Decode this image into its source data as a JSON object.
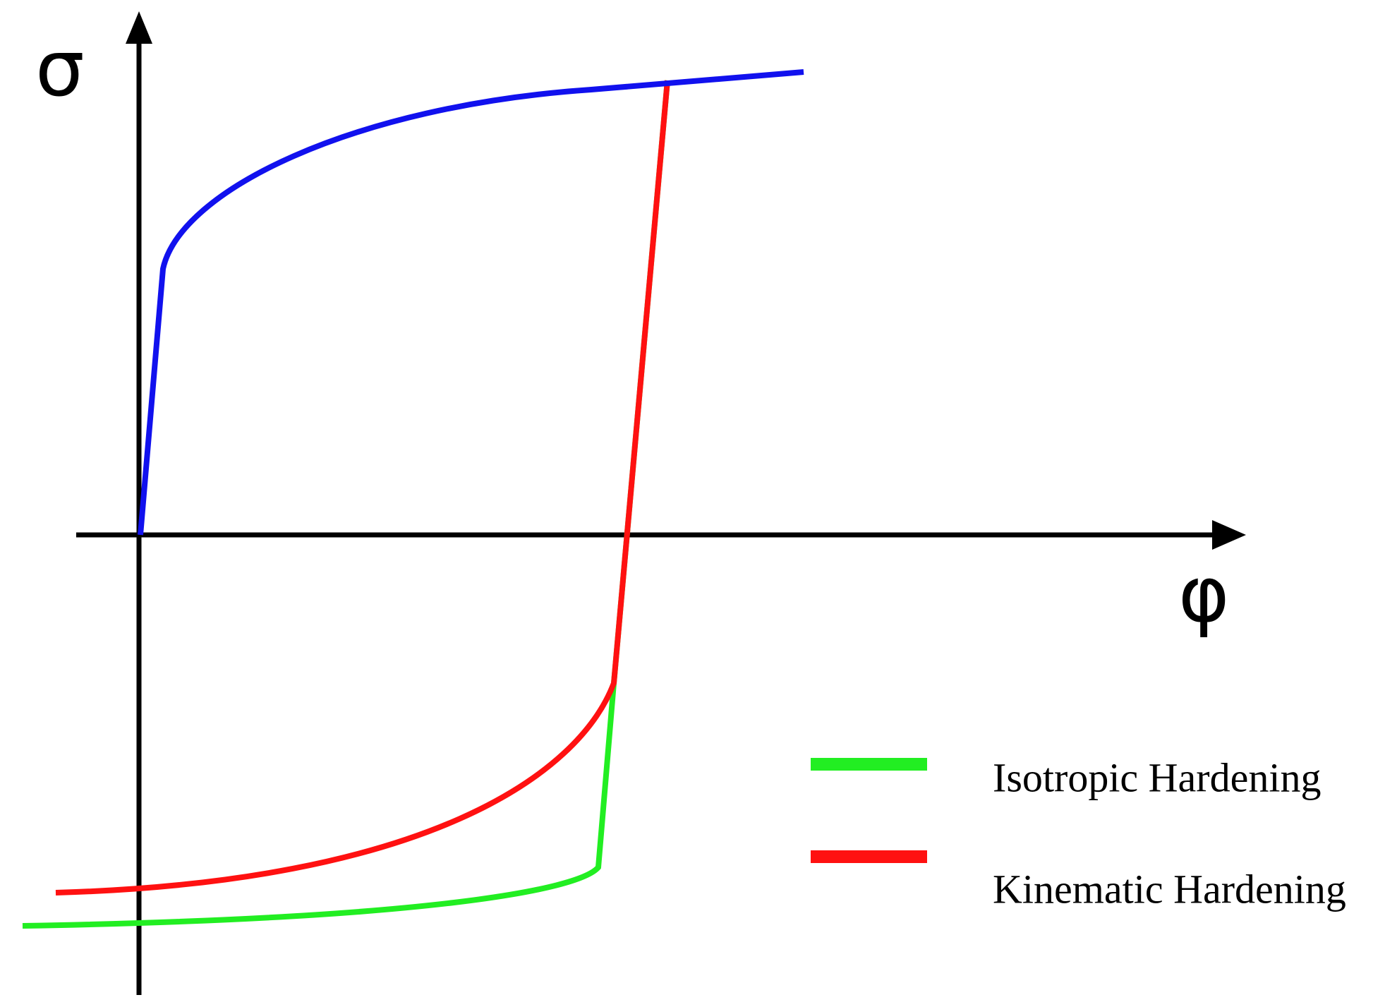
{
  "axes": {
    "y_label": "σ",
    "x_label": "φ"
  },
  "legend": [
    {
      "label": "Isotropic Hardening"
    },
    {
      "label": "Kinematic Hardening"
    }
  ]
}
